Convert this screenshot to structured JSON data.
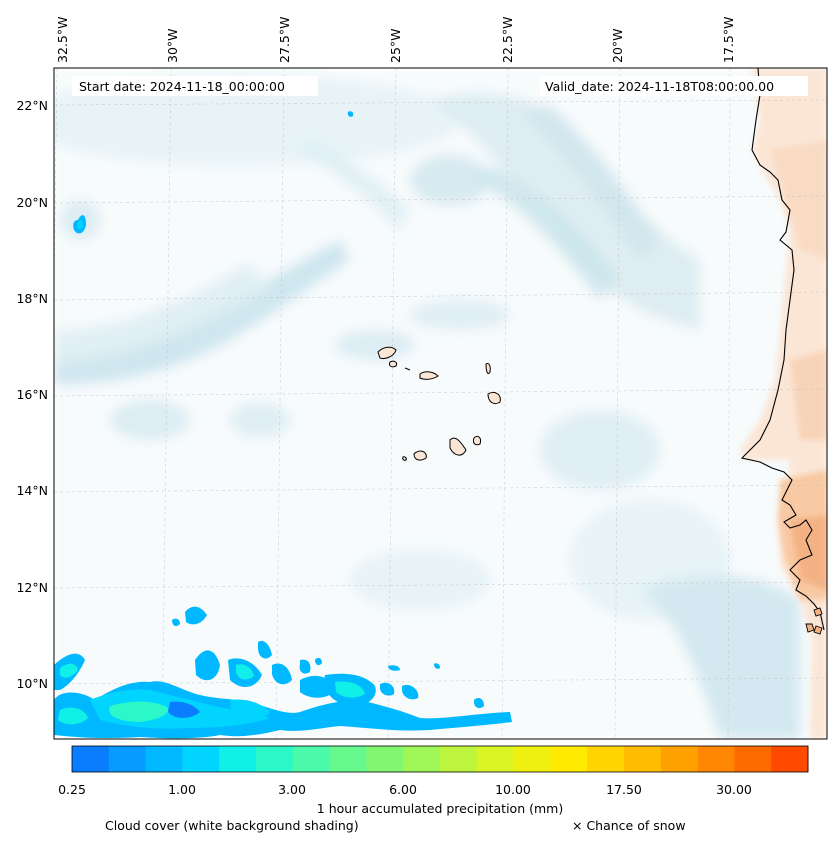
{
  "map": {
    "start_date": "Start date: 2024-11-18_00:00:00",
    "valid_date": "Valid_date: 2024-11-18T08:00:00.00",
    "lon_labels": [
      "32.5°W",
      "30°W",
      "27.5°W",
      "25°W",
      "22.5°W",
      "20°W",
      "17.5°W"
    ],
    "lat_labels": [
      "22°N",
      "20°N",
      "18°N",
      "16°N",
      "14°N",
      "12°N",
      "10°N"
    ]
  },
  "colorbar": {
    "colors": [
      "#0a7dff",
      "#069cff",
      "#00b8ff",
      "#00d4ff",
      "#10f0e8",
      "#2cf7c8",
      "#4af9aa",
      "#66f98e",
      "#82f872",
      "#9ef756",
      "#bcf53c",
      "#d8f424",
      "#f0f010",
      "#ffea00",
      "#ffd400",
      "#ffbc00",
      "#ffa200",
      "#ff8600",
      "#ff6a00",
      "#ff4a00"
    ],
    "tick_labels": [
      "0.25",
      "1.00",
      "3.00",
      "6.00",
      "10.00",
      "17.50",
      "30.00"
    ],
    "label": "1 hour accumulated precipitation (mm)"
  },
  "legend": {
    "cloud_cover": "Cloud cover (white background shading)",
    "snow": "× Chance of snow"
  }
}
